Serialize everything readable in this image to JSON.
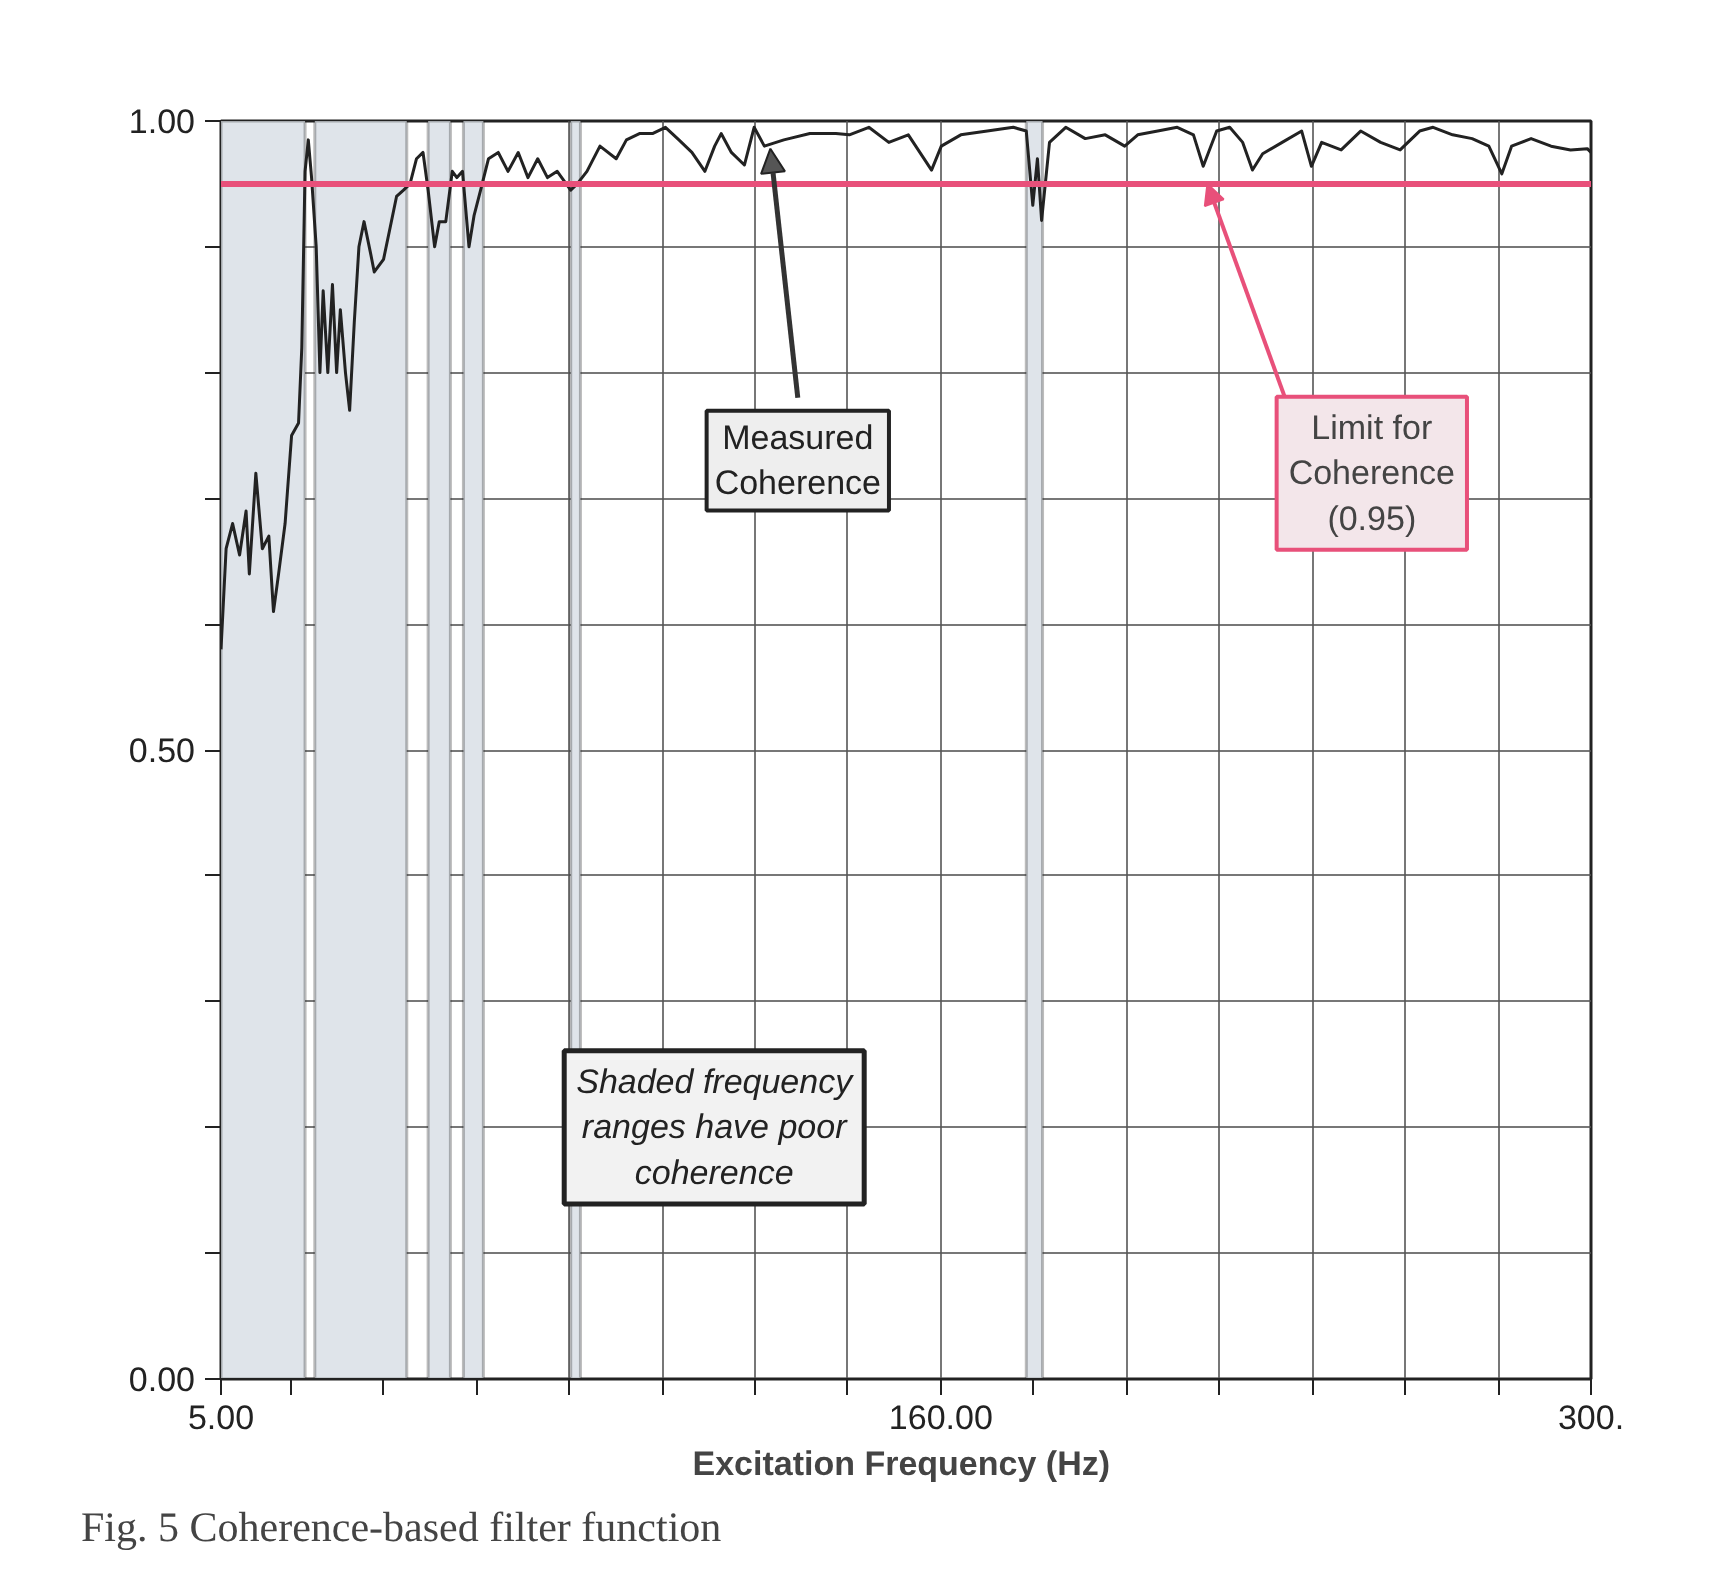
{
  "chart_data": {
    "type": "line",
    "title": "Fig. 5  Coherence-based filter function",
    "xlabel": "Excitation Frequency  (Hz)",
    "x": [
      5.0,
      6.1,
      7.5,
      9.0,
      10.4,
      11.1,
      12.5,
      13.9,
      15.3,
      16.3,
      17.4,
      18.8,
      20.2,
      21.7,
      22.4,
      23.1,
      23.8,
      24.5,
      25.5,
      26.3,
      27.0,
      28.0,
      29.0,
      29.9,
      30.7,
      31.8,
      32.7,
      33.7,
      34.7,
      35.8,
      37.2,
      38.0,
      40.0,
      41.4,
      42.8,
      44.3,
      45.7,
      47.1,
      48.5,
      49.6,
      51.0,
      52.0,
      53.4,
      54.8,
      55.8,
      57.0,
      58.4,
      59.5,
      60.9,
      62.6,
      64.7,
      66.8,
      69.0,
      71.1,
      73.2,
      75.3,
      77.4,
      80.3,
      81.7,
      83.8,
      86.6,
      90.1,
      92.3,
      95.1,
      97.9,
      100.7,
      103.6,
      106.4,
      109.2,
      111.3,
      112.7,
      114.9,
      117.7,
      119.8,
      122.0,
      126.2,
      131.8,
      137.4,
      140.3,
      144.5,
      148.8,
      153.0,
      158.0,
      160.1,
      164.3,
      170.0,
      175.6,
      178.4,
      179.8,
      180.8,
      181.7,
      183.4,
      186.9,
      191.1,
      195.4,
      199.6,
      202.4,
      206.7,
      210.9,
      214.4,
      216.5,
      219.4,
      222.2,
      225.0,
      227.1,
      229.3,
      233.5,
      237.7,
      239.8,
      242.0,
      246.2,
      250.4,
      254.7,
      258.9,
      263.1,
      266.0,
      270.2,
      274.4,
      278.0,
      280.8,
      282.9,
      287.1,
      291.4,
      295.6,
      299.2,
      300.0
    ],
    "series": [
      {
        "color": "#222222",
        "values": [
          0.58,
          0.66,
          0.68,
          0.655,
          0.69,
          0.64,
          0.72,
          0.66,
          0.67,
          0.61,
          0.64,
          0.68,
          0.75,
          0.76,
          0.82,
          0.96,
          0.985,
          0.955,
          0.9,
          0.8,
          0.865,
          0.8,
          0.87,
          0.8,
          0.85,
          0.8,
          0.77,
          0.84,
          0.9,
          0.92,
          0.895,
          0.88,
          0.89,
          0.915,
          0.94,
          0.945,
          0.95,
          0.97,
          0.975,
          0.945,
          0.9,
          0.92,
          0.92,
          0.96,
          0.955,
          0.96,
          0.9,
          0.925,
          0.945,
          0.97,
          0.975,
          0.96,
          0.975,
          0.955,
          0.97,
          0.955,
          0.96,
          0.945,
          0.95,
          0.96,
          0.98,
          0.97,
          0.985,
          0.99,
          0.99,
          0.995,
          0.985,
          0.975,
          0.96,
          0.98,
          0.99,
          0.975,
          0.965,
          0.995,
          0.98,
          0.985,
          0.99,
          0.99,
          0.989,
          0.995,
          0.983,
          0.989,
          0.961,
          0.98,
          0.989,
          0.992,
          0.995,
          0.992,
          0.933,
          0.97,
          0.921,
          0.983,
          0.995,
          0.986,
          0.989,
          0.98,
          0.989,
          0.992,
          0.995,
          0.989,
          0.964,
          0.992,
          0.995,
          0.983,
          0.961,
          0.974,
          0.983,
          0.992,
          0.964,
          0.983,
          0.977,
          0.992,
          0.983,
          0.977,
          0.992,
          0.995,
          0.989,
          0.986,
          0.98,
          0.958,
          0.98,
          0.986,
          0.98,
          0.977,
          0.978,
          0.975
        ]
      }
    ],
    "xlim": [
      5,
      300
    ],
    "ylim": [
      0,
      1
    ],
    "xticks": [
      {
        "value": 5,
        "label": "5.00"
      },
      {
        "value": 20,
        "label": null
      },
      {
        "value": 40,
        "label": null
      },
      {
        "value": 60,
        "label": null
      },
      {
        "value": 80,
        "label": null
      },
      {
        "value": 100,
        "label": null
      },
      {
        "value": 120,
        "label": null
      },
      {
        "value": 140,
        "label": null
      },
      {
        "value": 160,
        "label": "160.00"
      },
      {
        "value": 180,
        "label": null
      },
      {
        "value": 200,
        "label": null
      },
      {
        "value": 220,
        "label": null
      },
      {
        "value": 240,
        "label": null
      },
      {
        "value": 260,
        "label": null
      },
      {
        "value": 280,
        "label": null
      },
      {
        "value": 300,
        "label": "300."
      }
    ],
    "yticks": [
      {
        "value": 0,
        "label": "0.00"
      },
      {
        "value": 0.1,
        "label": null
      },
      {
        "value": 0.2,
        "label": null
      },
      {
        "value": 0.3,
        "label": null
      },
      {
        "value": 0.4,
        "label": null
      },
      {
        "value": 0.5,
        "label": "0.50"
      },
      {
        "value": 0.6,
        "label": null
      },
      {
        "value": 0.7,
        "label": null
      },
      {
        "value": 0.8,
        "label": null
      },
      {
        "value": 0.9,
        "label": null
      },
      {
        "value": 1,
        "label": "1.00"
      }
    ],
    "grid": true,
    "marker": "none",
    "line_style": "solid",
    "ref_lines": [
      {
        "axis": "y",
        "value": 0.95,
        "label": "Limit for\nCoherence\n(0.95)",
        "color": "#e8507a",
        "line_style": "solid"
      }
    ],
    "bands": [
      {
        "axis": "x",
        "from": 5,
        "to": 23.1,
        "color": "#dfe4ea"
      },
      {
        "axis": "x",
        "from": 25.2,
        "to": 45.0,
        "color": "#dfe4ea"
      },
      {
        "axis": "x",
        "from": 49.6,
        "to": 54.4,
        "color": "#dfe4ea"
      },
      {
        "axis": "x",
        "from": 57.2,
        "to": 61.5,
        "color": "#dfe4ea"
      },
      {
        "axis": "x",
        "from": 80.3,
        "to": 82.4,
        "color": "#dfe4ea"
      },
      {
        "axis": "x",
        "from": 178.4,
        "to": 181.9,
        "color": "#dfe4ea"
      }
    ],
    "annotations": [
      {
        "text": "Measured\nCoherence",
        "x": 123.3,
        "y": 0.978
      },
      "Shaded frequency\nranges have poor\ncoherence"
    ]
  }
}
